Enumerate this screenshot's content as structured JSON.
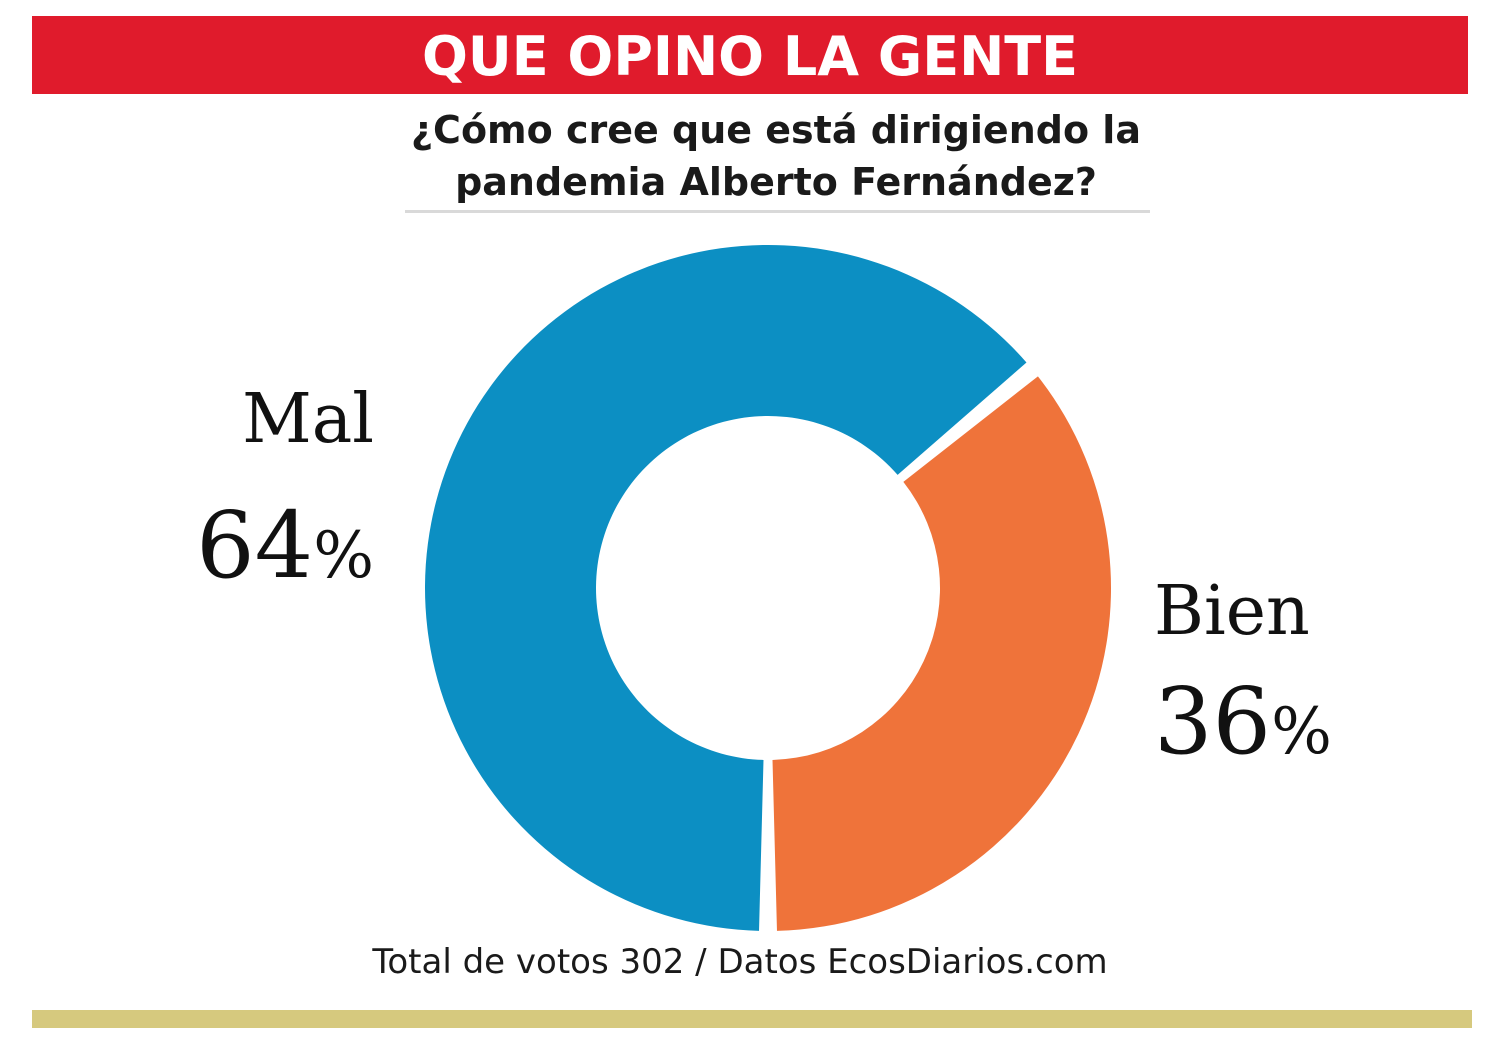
{
  "header": {
    "title": "QUE OPINO LA GENTE",
    "background_color": "#e01b2c",
    "text_color": "#ffffff"
  },
  "question": {
    "line1": "¿Cómo cree que está dirigiendo la",
    "line2": "pandemia Alberto Fernández?"
  },
  "footer": {
    "source": "Total de votos 302 / Datos EcosDiarios.com",
    "rule_color": "#d6c97e"
  },
  "chart_data": {
    "type": "pie",
    "donut": true,
    "title": "¿Cómo cree que está dirigiendo la pandemia Alberto Fernández?",
    "unit": "%",
    "total_votes": 302,
    "slices": [
      {
        "label": "Mal",
        "value": 64,
        "value_label": "64",
        "color": "#0c8fc3"
      },
      {
        "label": "Bien",
        "value": 36,
        "value_label": "36",
        "color": "#ef733a"
      }
    ]
  }
}
